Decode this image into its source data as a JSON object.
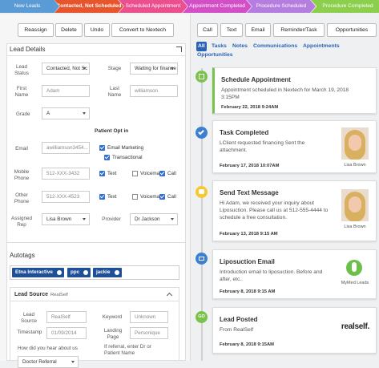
{
  "pipeline": [
    "New Leads",
    "Contacted, Not Scheduled",
    "Scheduled Appointment",
    "Appointment Completed",
    "Procedure Scheduled",
    "Procedure Completed"
  ],
  "toolbar": [
    "Reassign",
    "Delete",
    "Undo",
    "Convert to Nextech"
  ],
  "details": {
    "title": "Lead Details",
    "lead_status_label": "Lead Status",
    "lead_status": "Contacted, Not Sc",
    "stage_label": "Stage",
    "stage": "Waiting for finance",
    "first_name_label": "First Name",
    "first_name": "Adam",
    "last_name_label": "Last Name",
    "last_name": "williamson",
    "grade_label": "Grade",
    "grade": "A",
    "opt_in_title": "Patient Opt in",
    "email_label": "Email",
    "email": "awilliamson3454...",
    "email_marketing": "Email Marketing",
    "transactional": "Transactional",
    "mobile_label": "Mobile Phone",
    "mobile": "512-XXX-3432",
    "other_label": "Other Phone",
    "other": "512-XXX-4523",
    "text": "Text",
    "voicemail": "Voicemail",
    "call": "Call",
    "rep_label": "Assigned Rep",
    "rep": "Lisa Brown",
    "provider_label": "Provider",
    "provider": "Dr Jackson"
  },
  "autotags": {
    "title": "Autotags",
    "tags": [
      "Etna Interactive",
      "ppc",
      "jackie"
    ]
  },
  "lead_source": {
    "title": "Lead Source",
    "subtitle": "RealSelf",
    "source_label": "Lead Source",
    "source": "RealSelf",
    "keyword_label": "Keyword",
    "keyword": "Unknown",
    "timestamp_label": "Timestamp",
    "timestamp": "01/09/2014",
    "landing_label": "Landing Page",
    "landing": "Personique",
    "heard_label": "How did you hear about us",
    "heard": "Doctor Referral",
    "referral_label": "If referral, enter Dr or Patient Name"
  },
  "actions": [
    "Call",
    "Text",
    "Email",
    "Reminder/Task",
    "Opportunities"
  ],
  "tabs": [
    "All",
    "Tasks",
    "Notes",
    "Communications",
    "Appointments",
    "Opportunities"
  ],
  "timeline": [
    {
      "title": "Schedule Appointment",
      "body": "Appointment scheduled in Nextech for March 19, 2018 3:15PM",
      "date": "February 22, 2018 9:24AM"
    },
    {
      "title": "Task Completed",
      "body": "LClient requested financing Sent the attachment.",
      "date": "February 17, 2018 10:07AM",
      "person": "Lisa Brown"
    },
    {
      "title": "Send Text Message",
      "body": "Hi Adam, we received your inquiry about Liposuction. Please call us at 512-555-4444 to schedule a free consultation.",
      "date": "February 13, 2018 9:15 AM",
      "person": "Lisa Brown"
    },
    {
      "title": "Liposuction Email",
      "body": "Introduction email to liposuction. Before and after, etc..",
      "date": "February 8, 2018 9:15 AM",
      "person": "MyMed Leads"
    },
    {
      "title": "Lead Posted",
      "body": "From RealSelf",
      "date": "February 8, 2018 9:15AM",
      "logo": "realself.",
      "icon_label": "GO"
    }
  ]
}
